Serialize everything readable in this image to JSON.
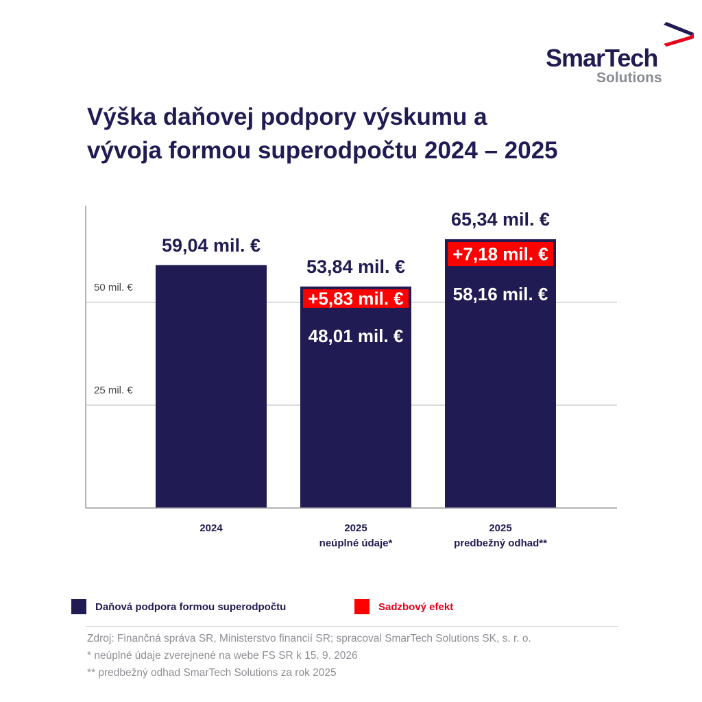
{
  "logo": {
    "text_main": "SmarTech",
    "text_sub": "Solutions",
    "colors": {
      "main": "#201b52",
      "sub": "#8a8c93",
      "accent": "#e4001b"
    }
  },
  "title_lines": [
    "Výška daňovej podpory výskumu a",
    "vývoja formou superodpočtu 2024 – 2025"
  ],
  "chart_data": {
    "type": "bar",
    "stacked": true,
    "ylim": [
      0,
      73.5
    ],
    "grid": true,
    "gridlines": [
      {
        "value": 25,
        "label": "25 mil. €"
      },
      {
        "value": 50,
        "label": "50 mil. €"
      }
    ],
    "categories": [
      {
        "line1": "2024",
        "line2": ""
      },
      {
        "line1": "2025",
        "line2": "neúplné údaje*"
      },
      {
        "line1": "2025",
        "line2": "predbežný odhad**"
      }
    ],
    "series": [
      {
        "name": "Daňová podpora formou superodpočtu",
        "color": "#201b52",
        "values": [
          59.04,
          48.01,
          58.16
        ],
        "labels": [
          "",
          "48,01 mil. €",
          "58,16 mil. €"
        ]
      },
      {
        "name": "Sadzbový efekt",
        "color": "#ff0000",
        "values": [
          0,
          5.83,
          7.18
        ],
        "labels": [
          "",
          "+5,83 mil. €",
          "+7,18 mil. €"
        ]
      }
    ],
    "totals": [
      59.04,
      53.84,
      65.34
    ],
    "total_labels": [
      "59,04 mil. €",
      "53,84 mil. €",
      "65,34 mil. €"
    ],
    "legend_position": "bottom-left"
  },
  "legend": [
    {
      "label": "Daňová podpora formou superodpočtu",
      "color": "#201b52",
      "text_color": "#201b52"
    },
    {
      "label": "Sadzbový efekt",
      "color": "#ff0000",
      "text_color": "#e4001b"
    }
  ],
  "footnotes": [
    "Zdroj: Finančná správa SR, Ministerstvo financií SR; spracoval SmarTech Solutions SK, s. r. o.",
    "* neúplné údaje zverejnené na webe FS SR k 15. 9. 2026",
    "** predbežný odhad SmarTech Solutions za rok 2025"
  ]
}
